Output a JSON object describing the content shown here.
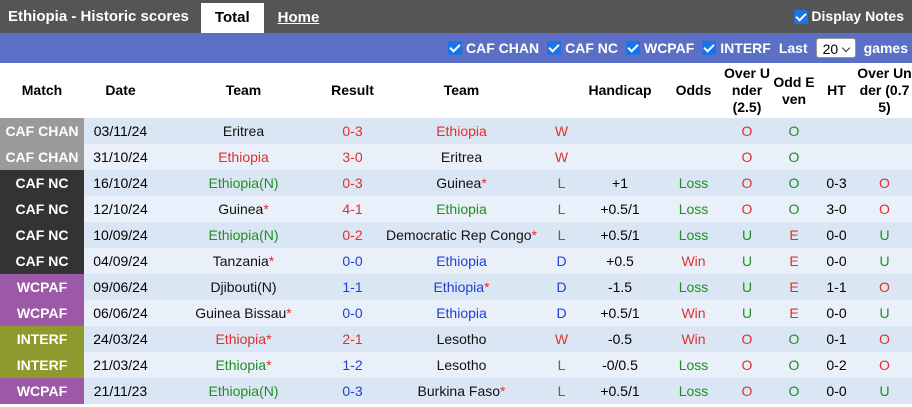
{
  "header": {
    "title": "Ethiopia - Historic scores",
    "tabs": [
      "Total",
      "Home"
    ],
    "display_notes": "Display Notes"
  },
  "filters": {
    "competitions": [
      "CAF CHAN",
      "CAF NC",
      "WCPAF",
      "INTERF"
    ],
    "last_label": "Last",
    "last_value": "20",
    "games_label": "games"
  },
  "table": {
    "columns": [
      "Match",
      "Date",
      "Team",
      "Result",
      "Team",
      null,
      "Handicap",
      "Odds",
      "Over Under (2.5)",
      "Odd Even",
      "HT",
      "Over Under (0.75)"
    ],
    "rows": [
      {
        "match": "CAF CHAN",
        "match_color": "#9a9a9a",
        "date": "03/11/24",
        "home": {
          "name": "Eritrea",
          "color": "#111"
        },
        "result": "0-3",
        "result_color": "#e0302a",
        "away": {
          "name": "Ethiopia",
          "color": "#e0302a"
        },
        "outcome": "W",
        "handicap": null,
        "odds": null,
        "ou": "O",
        "oe": "O",
        "ht": null,
        "ou2": null
      },
      {
        "match": "CAF CHAN",
        "match_color": "#9a9a9a",
        "date": "31/10/24",
        "home": {
          "name": "Ethiopia",
          "color": "#e0302a"
        },
        "result": "3-0",
        "result_color": "#e0302a",
        "away": {
          "name": "Eritrea",
          "color": "#111"
        },
        "outcome": "W",
        "handicap": null,
        "odds": null,
        "ou": "O",
        "oe": "O",
        "ht": null,
        "ou2": null
      },
      {
        "match": "CAF NC",
        "match_color": "#333333",
        "date": "16/10/24",
        "home": {
          "name": "Ethiopia(N)",
          "color": "#1f8f1f"
        },
        "result": "0-3",
        "result_color": "#e0302a",
        "away": {
          "name": "Guinea",
          "color": "#111",
          "star": "*"
        },
        "outcome": "L",
        "handicap": "+1",
        "odds": "Loss",
        "ou": "O",
        "oe": "O",
        "ht": "0-3",
        "ou2": "O"
      },
      {
        "match": "CAF NC",
        "match_color": "#333333",
        "date": "12/10/24",
        "home": {
          "name": "Guinea",
          "color": "#111",
          "star": "*"
        },
        "result": "4-1",
        "result_color": "#e0302a",
        "away": {
          "name": "Ethiopia",
          "color": "#1f8f1f"
        },
        "outcome": "L",
        "handicap": "+0.5/1",
        "odds": "Loss",
        "ou": "O",
        "oe": "O",
        "ht": "3-0",
        "ou2": "O"
      },
      {
        "match": "CAF NC",
        "match_color": "#333333",
        "date": "10/09/24",
        "home": {
          "name": "Ethiopia(N)",
          "color": "#1f8f1f"
        },
        "result": "0-2",
        "result_color": "#e0302a",
        "away": {
          "name": "Democratic Rep Congo",
          "color": "#111",
          "star": "*"
        },
        "outcome": "L",
        "handicap": "+0.5/1",
        "odds": "Loss",
        "ou": "U",
        "oe": "E",
        "ht": "0-0",
        "ou2": "U"
      },
      {
        "match": "CAF NC",
        "match_color": "#333333",
        "date": "04/09/24",
        "home": {
          "name": "Tanzania",
          "color": "#111",
          "star": "*"
        },
        "result": "0-0",
        "result_color": "#1f3fd0",
        "away": {
          "name": "Ethiopia",
          "color": "#1f3fd0"
        },
        "outcome": "D",
        "handicap": "+0.5",
        "odds": "Win",
        "ou": "U",
        "oe": "E",
        "ht": "0-0",
        "ou2": "U"
      },
      {
        "match": "WCPAF",
        "match_color": "#9b59a8",
        "date": "09/06/24",
        "home": {
          "name": "Djibouti(N)",
          "color": "#111"
        },
        "result": "1-1",
        "result_color": "#1f3fd0",
        "away": {
          "name": "Ethiopia",
          "color": "#1f3fd0",
          "star": "*"
        },
        "outcome": "D",
        "handicap": "-1.5",
        "odds": "Loss",
        "ou": "U",
        "oe": "E",
        "ht": "1-1",
        "ou2": "O"
      },
      {
        "match": "WCPAF",
        "match_color": "#9b59a8",
        "date": "06/06/24",
        "home": {
          "name": "Guinea Bissau",
          "color": "#111",
          "star": "*"
        },
        "result": "0-0",
        "result_color": "#1f3fd0",
        "away": {
          "name": "Ethiopia",
          "color": "#1f3fd0"
        },
        "outcome": "D",
        "handicap": "+0.5/1",
        "odds": "Win",
        "ou": "U",
        "oe": "E",
        "ht": "0-0",
        "ou2": "U"
      },
      {
        "match": "INTERF",
        "match_color": "#8f9a2e",
        "date": "24/03/24",
        "home": {
          "name": "Ethiopia",
          "color": "#e0302a",
          "star": "*"
        },
        "result": "2-1",
        "result_color": "#e0302a",
        "away": {
          "name": "Lesotho",
          "color": "#111"
        },
        "outcome": "W",
        "handicap": "-0.5",
        "odds": "Win",
        "ou": "O",
        "oe": "O",
        "ht": "0-1",
        "ou2": "O"
      },
      {
        "match": "INTERF",
        "match_color": "#8f9a2e",
        "date": "21/03/24",
        "home": {
          "name": "Ethiopia",
          "color": "#1f8f1f",
          "star": "*"
        },
        "result": "1-2",
        "result_color": "#1f3fd0",
        "away": {
          "name": "Lesotho",
          "color": "#111"
        },
        "outcome": "L",
        "handicap": "-0/0.5",
        "odds": "Loss",
        "ou": "O",
        "oe": "O",
        "ht": "0-2",
        "ou2": "O"
      },
      {
        "match": "WCPAF",
        "match_color": "#9b59a8",
        "date": "21/11/23",
        "home": {
          "name": "Ethiopia(N)",
          "color": "#1f8f1f"
        },
        "result": "0-3",
        "result_color": "#1f3fd0",
        "away": {
          "name": "Burkina Faso",
          "color": "#111",
          "star": "*"
        },
        "outcome": "L",
        "handicap": "+0.5/1",
        "odds": "Loss",
        "ou": "O",
        "oe": "O",
        "ht": "0-0",
        "ou2": "U"
      }
    ]
  }
}
